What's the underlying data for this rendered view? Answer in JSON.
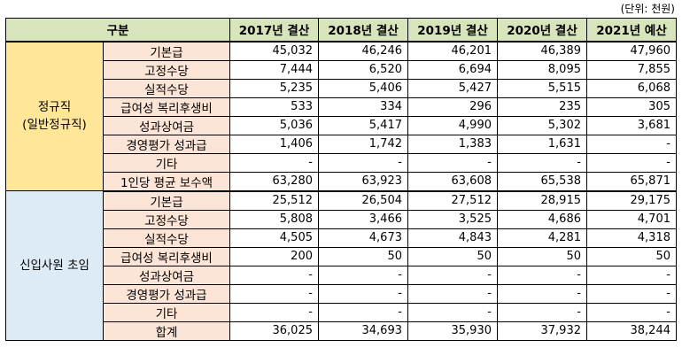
{
  "unit_label": "(단위: 천원)",
  "header": {
    "category": "구분",
    "years": [
      "2017년 결산",
      "2018년 결산",
      "2019년 결산",
      "2020년 결산",
      "2021년 예산"
    ]
  },
  "groups": [
    {
      "label_lines": [
        "정규직",
        "(일반정규직)"
      ],
      "rows": [
        {
          "item": "기본급",
          "values": [
            "45,032",
            "46,246",
            "46,201",
            "46,389",
            "47,960"
          ]
        },
        {
          "item": "고정수당",
          "values": [
            "7,444",
            "6,520",
            "6,694",
            "8,095",
            "7,855"
          ]
        },
        {
          "item": "실적수당",
          "values": [
            "5,235",
            "5,406",
            "5,427",
            "5,515",
            "6,068"
          ]
        },
        {
          "item": "급여성 복리후생비",
          "values": [
            "533",
            "334",
            "296",
            "235",
            "305"
          ]
        },
        {
          "item": "성과상여금",
          "values": [
            "5,036",
            "5,417",
            "4,990",
            "5,302",
            "3,681"
          ]
        },
        {
          "item": "경영평가 성과급",
          "values": [
            "1,406",
            "1,742",
            "1,383",
            "1,631",
            "-"
          ]
        },
        {
          "item": "기타",
          "values": [
            "-",
            "-",
            "-",
            "-",
            "-"
          ]
        },
        {
          "item": "1인당 평균 보수액",
          "values": [
            "63,280",
            "63,923",
            "63,608",
            "65,538",
            "65,871"
          ]
        }
      ]
    },
    {
      "label_lines": [
        "신입사원 초임"
      ],
      "rows": [
        {
          "item": "기본급",
          "values": [
            "25,512",
            "26,504",
            "27,512",
            "28,915",
            "29,175"
          ]
        },
        {
          "item": "고정수당",
          "values": [
            "5,808",
            "3,466",
            "3,525",
            "4,686",
            "4,701"
          ]
        },
        {
          "item": "실적수당",
          "values": [
            "4,505",
            "4,673",
            "4,843",
            "4,281",
            "4,318"
          ]
        },
        {
          "item": "급여성 복리후생비",
          "values": [
            "200",
            "50",
            "50",
            "50",
            "50"
          ]
        },
        {
          "item": "성과상여금",
          "values": [
            "-",
            "-",
            "-",
            "-",
            "-"
          ]
        },
        {
          "item": "경영평가 성과급",
          "values": [
            "-",
            "-",
            "-",
            "-",
            "-"
          ]
        },
        {
          "item": "기타",
          "values": [
            "-",
            "-",
            "-",
            "-",
            "-"
          ]
        },
        {
          "item": "합계",
          "values": [
            "36,025",
            "34,693",
            "35,930",
            "37,932",
            "38,244"
          ]
        }
      ]
    }
  ]
}
